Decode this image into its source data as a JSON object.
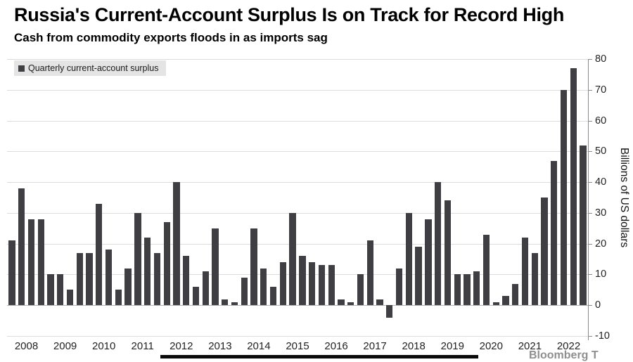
{
  "header": {
    "title": "Russia's Current-Account Surplus Is on Track for Record High",
    "subtitle": "Cash from commodity exports floods in as imports sag"
  },
  "legend": {
    "label": "Quarterly current-account surplus"
  },
  "footer": {
    "partial_text": "Bloomberg T"
  },
  "colors": {
    "bar": "#3f3e43",
    "grid": "#dcdcdc",
    "zero_line": "#b5b5b5",
    "axis": "#8a8a8a",
    "legend_bg": "#e4e4e4"
  },
  "chart_data": {
    "type": "bar",
    "title": "Russia's Current-Account Surplus Is on Track for Record High",
    "subtitle": "Cash from commodity exports floods in as imports sag",
    "series_name": "Quarterly current-account surplus",
    "ylabel": "Billions of US dollars",
    "ylim": [
      -10,
      80
    ],
    "yticks": [
      80,
      70,
      60,
      50,
      40,
      30,
      20,
      10,
      0,
      -10
    ],
    "grid": true,
    "legend_position": "top-left",
    "year_labels": [
      "2008",
      "2009",
      "2010",
      "2011",
      "2012",
      "2013",
      "2014",
      "2015",
      "2016",
      "2017",
      "2018",
      "2019",
      "2020",
      "2021",
      "2022"
    ],
    "quarters": [
      "2007 Q4",
      "2008 Q1",
      "2008 Q2",
      "2008 Q3",
      "2008 Q4",
      "2009 Q1",
      "2009 Q2",
      "2009 Q3",
      "2009 Q4",
      "2010 Q1",
      "2010 Q2",
      "2010 Q3",
      "2010 Q4",
      "2011 Q1",
      "2011 Q2",
      "2011 Q3",
      "2011 Q4",
      "2012 Q1",
      "2012 Q2",
      "2012 Q3",
      "2012 Q4",
      "2013 Q1",
      "2013 Q2",
      "2013 Q3",
      "2013 Q4",
      "2014 Q1",
      "2014 Q2",
      "2014 Q3",
      "2014 Q4",
      "2015 Q1",
      "2015 Q2",
      "2015 Q3",
      "2015 Q4",
      "2016 Q1",
      "2016 Q2",
      "2016 Q3",
      "2016 Q4",
      "2017 Q1",
      "2017 Q2",
      "2017 Q3",
      "2017 Q4",
      "2018 Q1",
      "2018 Q2",
      "2018 Q3",
      "2018 Q4",
      "2019 Q1",
      "2019 Q2",
      "2019 Q3",
      "2019 Q4",
      "2020 Q1",
      "2020 Q2",
      "2020 Q3",
      "2020 Q4",
      "2021 Q1",
      "2021 Q2",
      "2021 Q3",
      "2021 Q4",
      "2022 Q1",
      "2022 Q2",
      "2022 Q3"
    ],
    "values": [
      21,
      38,
      28,
      28,
      10,
      10,
      5,
      17,
      17,
      33,
      18,
      5,
      12,
      30,
      22,
      17,
      27,
      40,
      16,
      6,
      11,
      25,
      2,
      1,
      9,
      25,
      12,
      6,
      14,
      30,
      16,
      14,
      13,
      13,
      2,
      1,
      10,
      21,
      2,
      -4,
      12,
      30,
      19,
      28,
      40,
      34,
      10,
      10,
      11,
      23,
      1,
      3,
      7,
      22,
      17,
      35,
      47,
      70,
      77,
      52
    ]
  }
}
